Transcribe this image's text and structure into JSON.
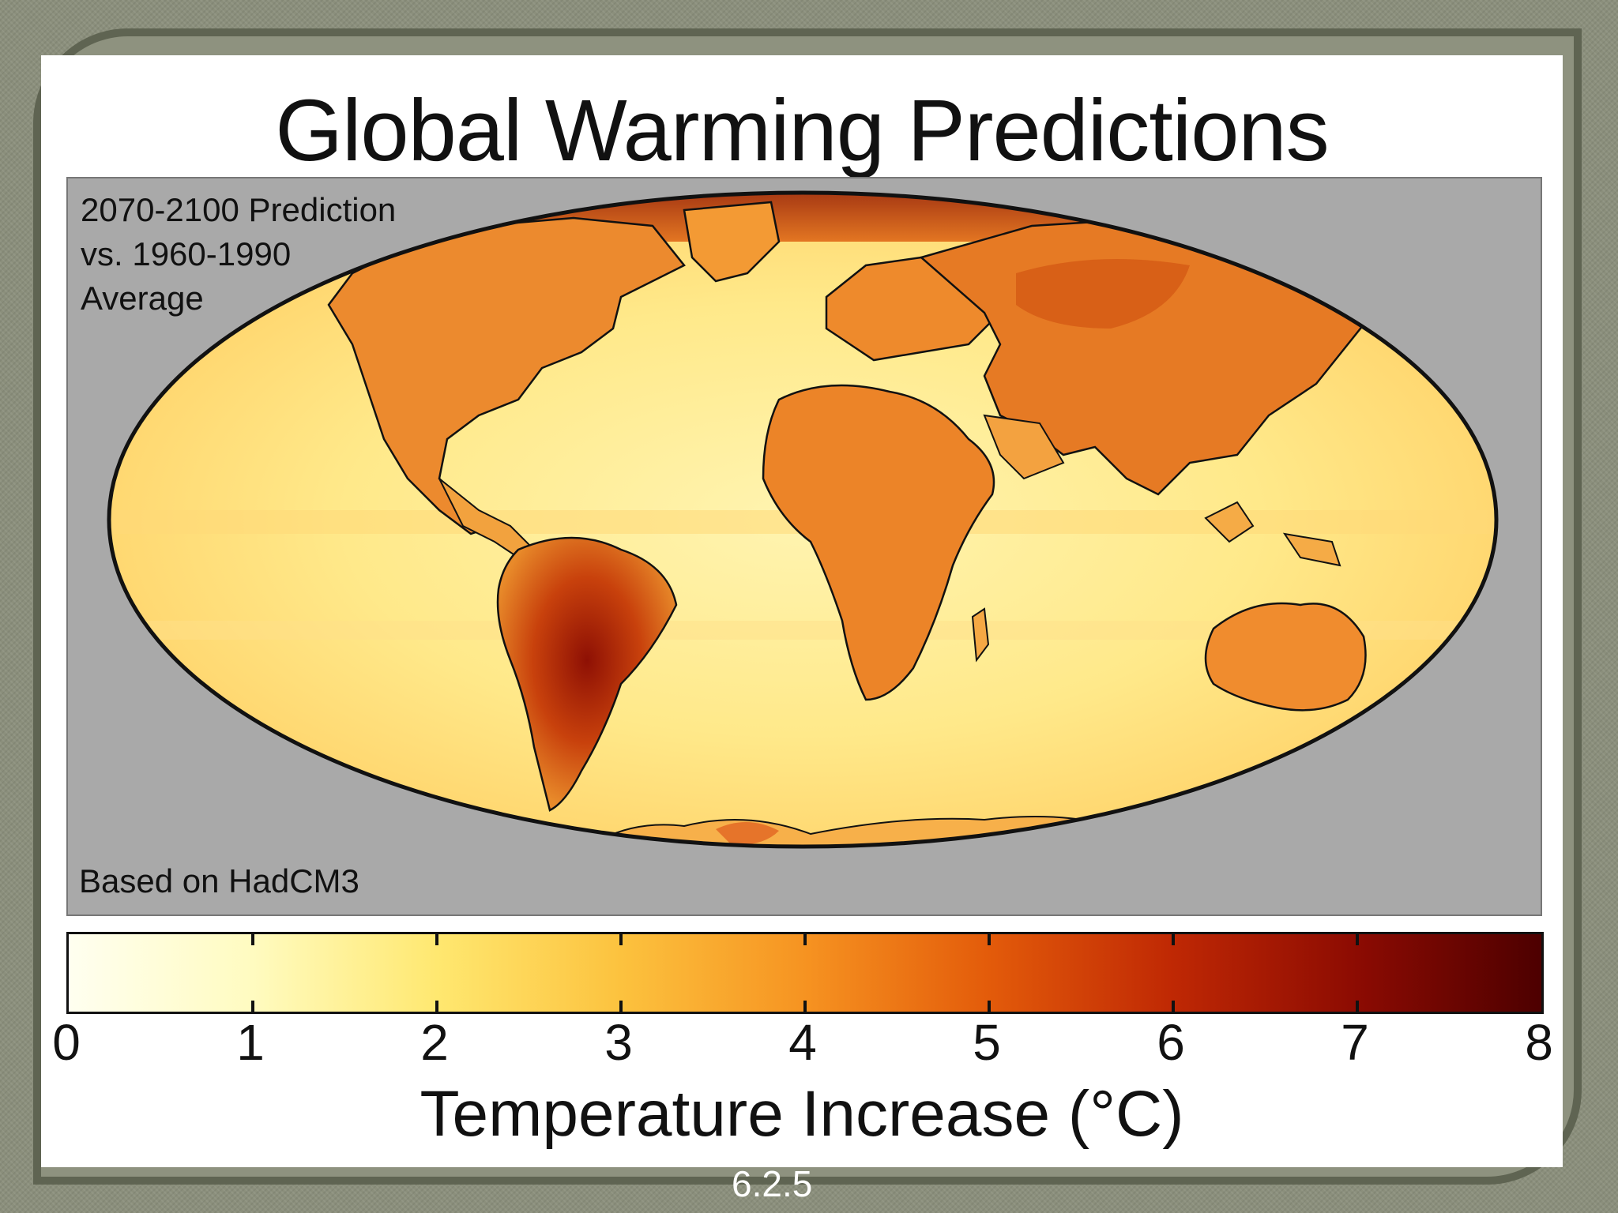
{
  "title": "Global Warming Predictions",
  "map": {
    "note_lines": [
      "2070-2100 Prediction",
      "vs. 1960-1990",
      "Average"
    ],
    "source": "Based on HadCM3"
  },
  "colorbar": {
    "min": 0,
    "max": 8,
    "ticks": [
      "0",
      "1",
      "2",
      "3",
      "4",
      "5",
      "6",
      "7",
      "8"
    ],
    "label": "Temperature Increase (°C)",
    "colors": [
      "#fffff0",
      "#fffbc0",
      "#ffe870",
      "#fcc23e",
      "#f69321",
      "#e35b0a",
      "#bf2804",
      "#8c0b02",
      "#4d0000"
    ]
  },
  "colors": {
    "map_background": "#a9a9a9",
    "ocean_low": "#fff2a8",
    "land_warm": "#ef8f2c",
    "land_hot": "#b01d08"
  },
  "slide_number": "6.2.5"
}
